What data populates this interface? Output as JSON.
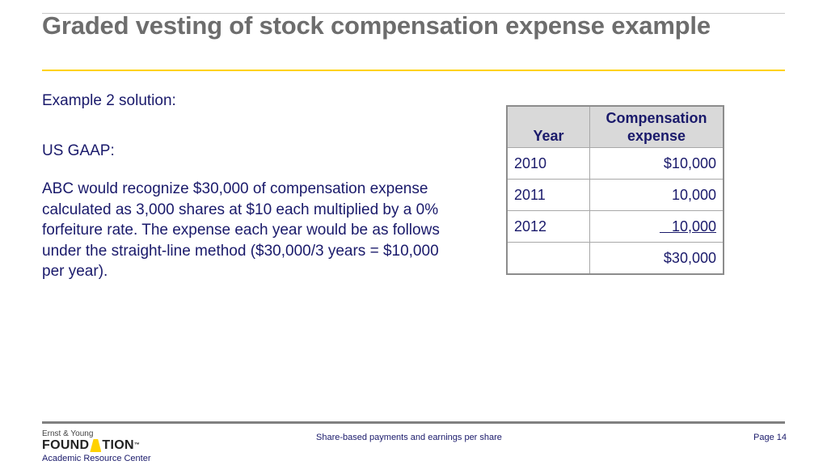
{
  "slide": {
    "title": "Graded vesting of stock compensation expense example",
    "subheading": "Example 2 solution:",
    "gaap_label": "US GAAP:",
    "paragraph": "ABC would recognize $30,000 of compensation expense calculated as 3,000 shares at $10 each multiplied by a 0% forfeiture rate.  The expense each year would be as follows under the straight-line method ($30,000/3 years = $10,000 per year)."
  },
  "table": {
    "headers": [
      "Year",
      "Compensation expense"
    ],
    "rows": [
      {
        "year": "2010",
        "amount": "$10,000"
      },
      {
        "year": "2011",
        "amount": "10,000"
      },
      {
        "year": "2012",
        "amount": "10,000"
      },
      {
        "year": "",
        "amount": "$30,000"
      }
    ]
  },
  "footer": {
    "logo_top": "Ernst & Young",
    "logo_left": "FOUND",
    "logo_right": "TION",
    "logo_tm": "™",
    "logo_sub": "Academic Resource Center",
    "center_text": "Share-based payments and earnings per share",
    "page_label": "Page 14"
  },
  "colors": {
    "title": "#6d6d6d",
    "body_text": "#1a1a6b",
    "accent_rule": "#ffd200",
    "table_header_bg": "#d9d9d9"
  }
}
